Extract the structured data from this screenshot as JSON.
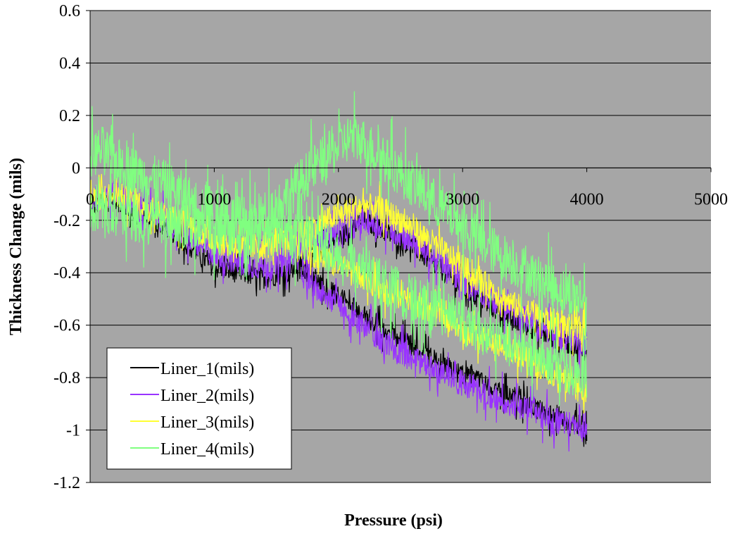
{
  "chart_data": {
    "type": "line",
    "title": "",
    "xlabel": "Pressure (psi)",
    "ylabel": "Thickness Change (mils)",
    "xlim": [
      0,
      5000
    ],
    "ylim": [
      -1.2,
      0.6
    ],
    "x_ticks": [
      "0",
      "1000",
      "2000",
      "3000",
      "4000",
      "5000"
    ],
    "y_ticks": [
      "0.6",
      "0.4",
      "0.2",
      "0",
      "-0.2",
      "-0.4",
      "-0.6",
      "-0.8",
      "-1",
      "-1.2"
    ],
    "grid": "horizontal",
    "plot_background": "#A6A6A6",
    "legend_placement": "bottom-left",
    "series": [
      {
        "name": "Liner_1(mils)",
        "color": "#000000",
        "loading": {
          "x": [
            0,
            200,
            400,
            600,
            800,
            1000,
            1200,
            1400,
            1600,
            1800,
            2000,
            2200,
            2400,
            2600,
            2800,
            3000,
            3200,
            3400,
            3600,
            3800,
            4000
          ],
          "y": [
            -0.15,
            -0.12,
            -0.18,
            -0.22,
            -0.3,
            -0.38,
            -0.4,
            -0.42,
            -0.4,
            -0.33,
            -0.27,
            -0.2,
            -0.25,
            -0.3,
            -0.38,
            -0.46,
            -0.52,
            -0.58,
            -0.62,
            -0.66,
            -0.7
          ]
        },
        "unloading": {
          "x": [
            4000,
            3800,
            3600,
            3400,
            3200,
            3000,
            2800,
            2600,
            2400,
            2200,
            2000,
            1800,
            1700
          ],
          "y": [
            -1.0,
            -0.95,
            -0.92,
            -0.88,
            -0.83,
            -0.79,
            -0.74,
            -0.68,
            -0.63,
            -0.56,
            -0.49,
            -0.42,
            -0.38
          ]
        },
        "noise": 0.04
      },
      {
        "name": "Liner_2(mils)",
        "color": "#9933FF",
        "loading": {
          "x": [
            0,
            200,
            400,
            600,
            800,
            1000,
            1200,
            1400,
            1600,
            1800,
            2000,
            2200,
            2400,
            2600,
            2800,
            3000,
            3200,
            3400,
            3600,
            3800,
            4000
          ],
          "y": [
            -0.12,
            -0.1,
            -0.15,
            -0.2,
            -0.27,
            -0.33,
            -0.36,
            -0.38,
            -0.36,
            -0.3,
            -0.25,
            -0.2,
            -0.23,
            -0.28,
            -0.36,
            -0.43,
            -0.49,
            -0.55,
            -0.6,
            -0.64,
            -0.67
          ]
        },
        "unloading": {
          "x": [
            4000,
            3800,
            3600,
            3400,
            3200,
            3000,
            2800,
            2600,
            2400,
            2200,
            2000,
            1800,
            1700
          ],
          "y": [
            -1.0,
            -0.97,
            -0.94,
            -0.9,
            -0.86,
            -0.82,
            -0.78,
            -0.73,
            -0.67,
            -0.6,
            -0.52,
            -0.45,
            -0.4
          ]
        },
        "noise": 0.05
      },
      {
        "name": "Liner_3(mils)",
        "color": "#FFFF33",
        "loading": {
          "x": [
            0,
            200,
            400,
            600,
            800,
            1000,
            1200,
            1400,
            1600,
            1800,
            2000,
            2200,
            2400,
            2600,
            2800,
            3000,
            3200,
            3400,
            3600,
            3800,
            4000
          ],
          "y": [
            -0.12,
            -0.1,
            -0.14,
            -0.18,
            -0.22,
            -0.28,
            -0.3,
            -0.3,
            -0.27,
            -0.22,
            -0.18,
            -0.14,
            -0.17,
            -0.23,
            -0.3,
            -0.38,
            -0.45,
            -0.52,
            -0.56,
            -0.6,
            -0.62
          ]
        },
        "unloading": {
          "x": [
            4000,
            3800,
            3600,
            3400,
            3200,
            3000,
            2800,
            2600,
            2400,
            2200,
            2000,
            1800,
            1700
          ],
          "y": [
            -0.85,
            -0.8,
            -0.75,
            -0.7,
            -0.66,
            -0.61,
            -0.56,
            -0.51,
            -0.47,
            -0.42,
            -0.37,
            -0.33,
            -0.3
          ]
        },
        "noise": 0.05
      },
      {
        "name": "Liner_4(mils)",
        "color": "#80FF80",
        "loading": {
          "x": [
            0,
            100,
            200,
            400,
            600,
            800,
            1000,
            1200,
            1400,
            1600,
            1800,
            2000,
            2100,
            2200,
            2400,
            2600,
            2800,
            3000,
            3200,
            3400,
            3600,
            3800,
            4000
          ],
          "y": [
            0.05,
            0.07,
            0.03,
            -0.02,
            -0.06,
            -0.12,
            -0.17,
            -0.2,
            -0.18,
            -0.1,
            0.0,
            0.08,
            0.12,
            0.1,
            0.02,
            -0.06,
            -0.14,
            -0.22,
            -0.3,
            -0.36,
            -0.42,
            -0.47,
            -0.5
          ]
        },
        "unloading": {
          "x": [
            4000,
            3800,
            3600,
            3400,
            3200,
            3000,
            2800,
            2600,
            2400,
            2200,
            2000,
            1800,
            1600,
            1400,
            1200,
            1000,
            800,
            600,
            400,
            200,
            0
          ],
          "y": [
            -0.8,
            -0.76,
            -0.72,
            -0.68,
            -0.63,
            -0.59,
            -0.54,
            -0.5,
            -0.45,
            -0.39,
            -0.33,
            -0.28,
            -0.25,
            -0.24,
            -0.25,
            -0.24,
            -0.23,
            -0.22,
            -0.2,
            -0.17,
            -0.15
          ]
        },
        "noise": 0.09
      }
    ]
  }
}
